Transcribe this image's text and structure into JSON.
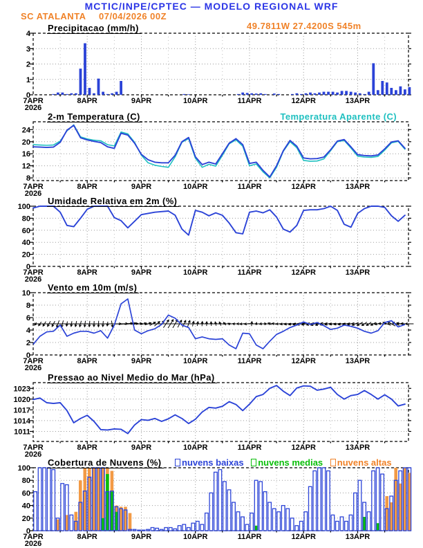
{
  "header": {
    "line1": "MCTIC/INPE/CPTEC — MODELO REGIONAL WRF",
    "station": "SC ATALANTA",
    "run": "07/04/2026 00Z",
    "coords": "49.7811W 27.4200S 545m"
  },
  "colors": {
    "header_blue": "#2b35e6",
    "orange": "#f08228",
    "line_blue": "#2b43d7",
    "cyan": "#1fc0c0",
    "green": "#0abe0a",
    "cloud_orange": "#f29a45",
    "grid": "#9a9a9a",
    "black": "#000000"
  },
  "x_axis": {
    "day_labels": [
      "7APR",
      "8APR",
      "9APR",
      "10APR",
      "11APR",
      "12APR",
      "13APR"
    ],
    "year": "2026",
    "num_days": 6.94
  },
  "chart_data": [
    {
      "id": "precip",
      "type": "bar",
      "title": "Precipitacao (mm/h)",
      "ylim": [
        0,
        4
      ],
      "yticks": [
        0,
        1,
        2,
        3,
        4
      ],
      "step_days": 0.08333,
      "values": [
        0,
        0,
        0,
        0,
        0.05,
        0.15,
        0.15,
        0.05,
        0.1,
        0.1,
        1.7,
        3.35,
        0.45,
        0.1,
        1.05,
        0.2,
        0.05,
        0.1,
        0.2,
        0.9,
        0,
        0,
        0,
        0,
        0,
        0,
        0,
        0,
        0,
        0,
        0,
        0,
        0,
        0.05,
        0.03,
        0,
        0,
        0,
        0,
        0,
        0,
        0,
        0,
        0,
        0,
        0.05,
        0.15,
        0.12,
        0.1,
        0.08,
        0.1,
        0.05,
        0,
        0.08,
        0.05,
        0,
        0,
        0.05,
        0.1,
        0.05,
        0.1,
        0.15,
        0.1,
        0.15,
        0.2,
        0.2,
        0.2,
        0.15,
        0.25,
        0.25,
        0.2,
        0.15,
        0.1,
        0.05,
        0.2,
        2.05,
        0.3,
        0.9,
        0.8,
        0.45,
        0.3,
        0.55,
        0.35,
        0.5
      ]
    },
    {
      "id": "temp",
      "type": "line",
      "title": "2-m Temperatura (C)",
      "title2": "Temperatura Aparente (C)",
      "ylim": [
        7.1,
        26.6
      ],
      "yticks": [
        8,
        12,
        16,
        20,
        24
      ],
      "step_days": 0.125,
      "series": [
        {
          "name": "Temperatura Aparente (C)",
          "color_key": "cyan",
          "width": 1.6,
          "values": [
            19.0,
            18.9,
            18.8,
            18.9,
            20.2,
            23.6,
            25.6,
            21.6,
            20.9,
            20.5,
            20.3,
            19.0,
            18.6,
            23.2,
            22.6,
            19.8,
            15.5,
            13.0,
            12.2,
            11.8,
            11.5,
            15.0,
            19.8,
            21.0,
            14.5,
            11.5,
            12.5,
            11.9,
            15.5,
            19.3,
            20.6,
            18.5,
            12.0,
            12.6,
            10.0,
            8.0,
            11.5,
            16.8,
            20.0,
            18.0,
            13.8,
            13.5,
            13.6,
            14.3,
            17.0,
            20.0,
            20.4,
            17.9,
            15.2,
            14.9,
            14.8,
            15.1,
            17.2,
            19.6,
            20.1,
            17.5
          ]
        },
        {
          "name": "2-m Temperatura (C)",
          "color_key": "line_blue",
          "width": 1.9,
          "values": [
            18.3,
            18.2,
            18.1,
            18.2,
            19.8,
            23.8,
            25.4,
            21.3,
            20.6,
            20.1,
            19.7,
            18.3,
            17.8,
            22.8,
            22.2,
            19.5,
            15.8,
            14.0,
            13.2,
            13.0,
            13.0,
            15.5,
            20.0,
            21.4,
            15.0,
            12.4,
            13.2,
            12.6,
            16.0,
            19.5,
            21.0,
            19.0,
            12.8,
            13.2,
            10.5,
            8.3,
            12.0,
            17.0,
            20.4,
            18.5,
            14.6,
            14.3,
            14.4,
            14.9,
            17.3,
            20.2,
            20.7,
            18.3,
            15.7,
            15.4,
            15.3,
            15.6,
            17.6,
            19.9,
            20.3,
            17.8
          ]
        }
      ]
    },
    {
      "id": "rh",
      "type": "line",
      "title": "Umidade Relativa em 2m (%)",
      "ylim": [
        0,
        100
      ],
      "yticks": [
        0,
        20,
        40,
        60,
        80,
        100
      ],
      "step_days": 0.125,
      "series": [
        {
          "name": "Umidade Relativa",
          "color_key": "line_blue",
          "width": 1.9,
          "values": [
            97,
            100,
            100,
            100,
            90,
            68,
            66,
            80,
            95,
            100,
            100,
            100,
            81,
            76,
            64,
            75,
            86,
            88,
            90,
            91,
            92,
            85,
            62,
            52,
            93,
            90,
            84,
            89,
            85,
            72,
            56,
            54,
            90,
            92,
            89,
            94,
            82,
            62,
            57,
            68,
            93,
            94,
            94,
            96,
            100,
            93,
            70,
            65,
            88,
            96,
            100,
            100,
            98,
            84,
            75,
            85
          ]
        }
      ]
    },
    {
      "id": "wind",
      "type": "wind",
      "title": "Vento em 10m (m/s)",
      "ylim": [
        0,
        10
      ],
      "yticks": [
        0,
        2,
        4,
        6,
        8,
        10
      ],
      "step_days": 0.125,
      "ref_line": 5,
      "speed": [
        1.7,
        3.0,
        3.7,
        3.8,
        4.8,
        3.0,
        3.5,
        3.8,
        3.8,
        3.5,
        3.9,
        2.7,
        4.8,
        8.2,
        9.0,
        4.0,
        3.4,
        3.9,
        4.2,
        4.9,
        6.4,
        5.9,
        4.8,
        4.4,
        2.6,
        2.9,
        2.6,
        2.5,
        2.6,
        1.6,
        1.0,
        3.5,
        3.4,
        1.6,
        1.0,
        2.2,
        3.3,
        3.8,
        4.4,
        4.8,
        5.3,
        4.9,
        5.2,
        4.7,
        4.1,
        4.3,
        4.8,
        4.6,
        4.3,
        3.8,
        3.5,
        3.9,
        5.2,
        5.5,
        4.5,
        4.9
      ],
      "dir_step_days": 0.08333,
      "dirs_deg": [
        235,
        235,
        238,
        240,
        242,
        250,
        255,
        260,
        262,
        258,
        255,
        262,
        265,
        268,
        268,
        265,
        262,
        280,
        0,
        2,
        5,
        5,
        8,
        10,
        15,
        20,
        30,
        40,
        50,
        55,
        58,
        60,
        62,
        65,
        70,
        75,
        80,
        85,
        88,
        95,
        105,
        115,
        130,
        150,
        170,
        180,
        185,
        188,
        85,
        75,
        70,
        120,
        150,
        170,
        185,
        188,
        190,
        192,
        195,
        195,
        195,
        198,
        200,
        200,
        198,
        195,
        192,
        190,
        192,
        195,
        200,
        205,
        210,
        215,
        215,
        210,
        190,
        175,
        160,
        150,
        155,
        165,
        175,
        180
      ]
    },
    {
      "id": "pressure",
      "type": "line",
      "title": "Pressao ao Nivel Medio do Mar (hPa)",
      "ylim": [
        1008.2,
        1024.6
      ],
      "yticks": [
        1011,
        1014,
        1017,
        1020,
        1023
      ],
      "step_days": 0.125,
      "series": [
        {
          "name": "Pressao",
          "color_key": "line_blue",
          "width": 1.9,
          "values": [
            1019.9,
            1020.3,
            1019.0,
            1018.8,
            1019.0,
            1016.8,
            1013.4,
            1014.6,
            1015.5,
            1013.8,
            1011.5,
            1011.4,
            1011.7,
            1011.6,
            1010.4,
            1012.8,
            1014.3,
            1014.1,
            1014.6,
            1013.8,
            1014.5,
            1015.6,
            1014.6,
            1013.2,
            1014.4,
            1016.4,
            1017.7,
            1017.5,
            1018.0,
            1019.3,
            1018.5,
            1016.8,
            1018.6,
            1020.7,
            1021.3,
            1023.0,
            1023.8,
            1022.2,
            1021.0,
            1023.1,
            1023.7,
            1023.6,
            1022.5,
            1022.8,
            1023.3,
            1021.3,
            1020.0,
            1021.0,
            1021.3,
            1022.4,
            1021.3,
            1020.0,
            1021.2,
            1020.0,
            1018.1,
            1018.6
          ]
        }
      ]
    },
    {
      "id": "clouds",
      "type": "cloudbar",
      "title": "Cobertura de Nuvens (%)",
      "ylim": [
        0,
        100
      ],
      "yticks": [
        0,
        20,
        40,
        60,
        80,
        100
      ],
      "step_days": 0.08333,
      "legend": [
        {
          "label": "nuvens baixas",
          "color_key": "line_blue"
        },
        {
          "label": "nuvens medias",
          "color_key": "green"
        },
        {
          "label": "nuvens altas",
          "color_key": "orange"
        }
      ],
      "series": [
        {
          "name": "nuvens altas",
          "color_key": "cloud_orange",
          "style": "fill",
          "values": [
            0,
            0,
            0,
            0,
            0,
            18,
            0,
            25,
            0,
            30,
            80,
            100,
            100,
            100,
            100,
            100,
            100,
            95,
            40,
            38,
            38,
            28,
            0,
            0,
            0,
            0,
            0,
            0,
            0,
            0,
            0,
            0,
            0,
            0,
            0,
            0,
            0,
            0,
            0,
            0,
            0,
            0,
            0,
            0,
            0,
            0,
            0,
            0,
            0,
            0,
            0,
            0,
            0,
            0,
            0,
            0,
            0,
            0,
            0,
            0,
            0,
            0,
            0,
            0,
            0,
            0,
            0,
            0,
            0,
            0,
            0,
            0,
            0,
            0,
            0,
            0,
            0,
            0,
            55,
            45,
            100,
            75,
            100,
            92
          ]
        },
        {
          "name": "nuvens medias",
          "color_key": "green",
          "style": "fill",
          "values": [
            0,
            0,
            0,
            0,
            0,
            0,
            0,
            0,
            0,
            0,
            0,
            0,
            0,
            0,
            0,
            20,
            90,
            62,
            30,
            0,
            0,
            0,
            0,
            0,
            0,
            0,
            0,
            0,
            0,
            0,
            0,
            0,
            0,
            0,
            0,
            0,
            0,
            0,
            0,
            0,
            0,
            0,
            0,
            0,
            0,
            0,
            0,
            0,
            0,
            8,
            0,
            0,
            0,
            0,
            0,
            0,
            0,
            0,
            0,
            0,
            0,
            0,
            0,
            0,
            0,
            0,
            0,
            0,
            0,
            0,
            0,
            0,
            0,
            22,
            0,
            0,
            12,
            0,
            0,
            0,
            0,
            0,
            0,
            0
          ]
        },
        {
          "name": "nuvens baixas",
          "color_key": "line_blue",
          "style": "outline",
          "values": [
            62,
            100,
            100,
            100,
            97,
            20,
            75,
            73,
            25,
            15,
            45,
            63,
            85,
            100,
            100,
            100,
            62,
            63,
            38,
            35,
            33,
            2,
            2,
            1,
            1,
            2,
            5,
            4,
            2,
            5,
            5,
            3,
            8,
            10,
            5,
            12,
            15,
            10,
            28,
            60,
            93,
            97,
            78,
            65,
            45,
            30,
            22,
            10,
            28,
            80,
            78,
            62,
            45,
            35,
            30,
            40,
            35,
            20,
            8,
            15,
            30,
            70,
            95,
            100,
            100,
            95,
            25,
            15,
            22,
            15,
            25,
            60,
            80,
            45,
            30,
            95,
            100,
            90,
            35,
            55,
            80,
            95,
            100,
            100
          ]
        }
      ]
    }
  ]
}
